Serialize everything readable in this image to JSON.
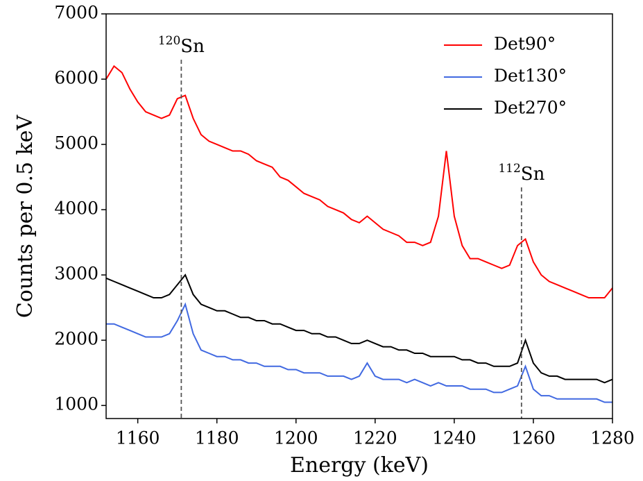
{
  "chart_data": {
    "type": "line",
    "x_label": "Energy (keV)",
    "y_label": "Counts per 0.5 keV",
    "x": [
      1152,
      1154,
      1156,
      1158,
      1160,
      1162,
      1164,
      1166,
      1168,
      1170,
      1172,
      1174,
      1176,
      1178,
      1180,
      1182,
      1184,
      1186,
      1188,
      1190,
      1192,
      1194,
      1196,
      1198,
      1200,
      1202,
      1204,
      1206,
      1208,
      1210,
      1212,
      1214,
      1216,
      1218,
      1220,
      1222,
      1224,
      1226,
      1228,
      1230,
      1232,
      1234,
      1236,
      1238,
      1240,
      1242,
      1244,
      1246,
      1248,
      1250,
      1252,
      1254,
      1256,
      1258,
      1260,
      1262,
      1264,
      1266,
      1268,
      1270,
      1272,
      1274,
      1276,
      1278,
      1280
    ],
    "series": [
      {
        "name": "Det90°",
        "color": "#ff0000",
        "values": [
          6000,
          6200,
          6100,
          5850,
          5650,
          5500,
          5450,
          5400,
          5450,
          5700,
          5750,
          5400,
          5150,
          5050,
          5000,
          4950,
          4900,
          4900,
          4850,
          4750,
          4700,
          4650,
          4500,
          4450,
          4350,
          4250,
          4200,
          4150,
          4050,
          4000,
          3950,
          3850,
          3800,
          3900,
          3800,
          3700,
          3650,
          3600,
          3500,
          3500,
          3450,
          3500,
          3900,
          4900,
          3900,
          3450,
          3250,
          3250,
          3200,
          3150,
          3100,
          3150,
          3450,
          3550,
          3200,
          3000,
          2900,
          2850,
          2800,
          2750,
          2700,
          2650,
          2650,
          2650,
          2800
        ]
      },
      {
        "name": "Det130°",
        "color": "#4169e1",
        "values": [
          2250,
          2250,
          2200,
          2150,
          2100,
          2050,
          2050,
          2050,
          2100,
          2300,
          2550,
          2100,
          1850,
          1800,
          1750,
          1750,
          1700,
          1700,
          1650,
          1650,
          1600,
          1600,
          1600,
          1550,
          1550,
          1500,
          1500,
          1500,
          1450,
          1450,
          1450,
          1400,
          1450,
          1650,
          1450,
          1400,
          1400,
          1400,
          1350,
          1400,
          1350,
          1300,
          1350,
          1300,
          1300,
          1300,
          1250,
          1250,
          1250,
          1200,
          1200,
          1250,
          1300,
          1600,
          1250,
          1150,
          1150,
          1100,
          1100,
          1100,
          1100,
          1100,
          1100,
          1050,
          1050
        ]
      },
      {
        "name": "Det270°",
        "color": "#000000",
        "values": [
          2950,
          2900,
          2850,
          2800,
          2750,
          2700,
          2650,
          2650,
          2700,
          2850,
          3000,
          2700,
          2550,
          2500,
          2450,
          2450,
          2400,
          2350,
          2350,
          2300,
          2300,
          2250,
          2250,
          2200,
          2150,
          2150,
          2100,
          2100,
          2050,
          2050,
          2000,
          1950,
          1950,
          2000,
          1950,
          1900,
          1900,
          1850,
          1850,
          1800,
          1800,
          1750,
          1750,
          1750,
          1750,
          1700,
          1700,
          1650,
          1650,
          1600,
          1600,
          1600,
          1650,
          2000,
          1650,
          1500,
          1450,
          1450,
          1400,
          1400,
          1400,
          1400,
          1400,
          1350,
          1400
        ]
      }
    ],
    "annotations": [
      {
        "mass": "120",
        "label": "Sn",
        "x": 1171
      },
      {
        "mass": "112",
        "label": "Sn",
        "x": 1257
      }
    ],
    "xlim": [
      1152,
      1280
    ],
    "xticks": [
      1160,
      1180,
      1200,
      1220,
      1240,
      1260,
      1280
    ],
    "ylim": [
      800,
      7000
    ],
    "yticks": [
      1000,
      2000,
      3000,
      4000,
      5000,
      6000,
      7000
    ],
    "legend": "upper right"
  }
}
